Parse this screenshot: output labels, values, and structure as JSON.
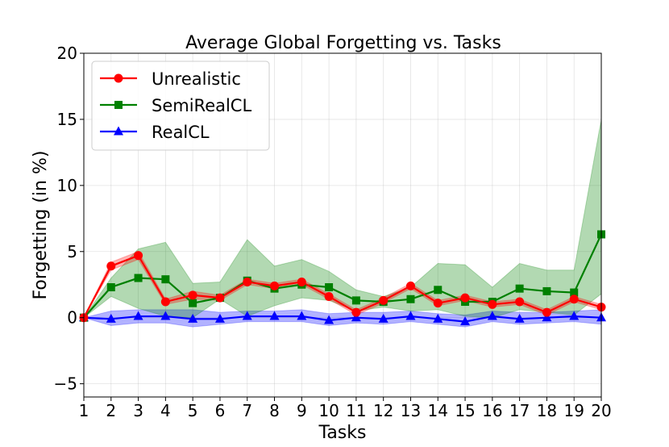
{
  "chart_data": {
    "type": "line",
    "title": "Average Global Forgetting vs. Tasks",
    "xlabel": "Tasks",
    "ylabel": "Forgetting (in %)",
    "x": [
      1,
      2,
      3,
      4,
      5,
      6,
      7,
      8,
      9,
      10,
      11,
      12,
      13,
      14,
      15,
      16,
      17,
      18,
      19,
      20
    ],
    "xlim": [
      1,
      20
    ],
    "ylim": [
      -6,
      20
    ],
    "yticks": [
      -5,
      0,
      5,
      10,
      15,
      20
    ],
    "grid": true,
    "legend": "top-left",
    "series": [
      {
        "name": "Unrealistic",
        "color": "#ff0000",
        "marker": "circle",
        "values": [
          0,
          3.9,
          4.7,
          1.2,
          1.7,
          1.5,
          2.7,
          2.4,
          2.7,
          1.6,
          0.4,
          1.3,
          2.4,
          1.1,
          1.5,
          1.0,
          1.2,
          0.4,
          1.4,
          0.8
        ],
        "lower": [
          0,
          3.6,
          4.4,
          1.0,
          1.4,
          1.3,
          2.5,
          2.2,
          2.5,
          1.4,
          0.2,
          1.1,
          2.2,
          0.9,
          1.3,
          0.8,
          1.0,
          0.2,
          1.2,
          0.6
        ],
        "upper": [
          0,
          4.2,
          5.0,
          1.4,
          2.0,
          1.7,
          2.9,
          2.6,
          2.9,
          1.8,
          0.6,
          1.5,
          2.6,
          1.3,
          1.7,
          1.2,
          1.4,
          0.6,
          1.6,
          1.0
        ]
      },
      {
        "name": "SemiRealCL",
        "color": "#008000",
        "marker": "square",
        "values": [
          0,
          2.3,
          3.0,
          2.9,
          1.1,
          1.5,
          2.8,
          2.2,
          2.5,
          2.3,
          1.3,
          1.2,
          1.4,
          2.1,
          1.2,
          1.2,
          2.2,
          2.0,
          1.9,
          6.3
        ],
        "lower": [
          0,
          1.6,
          0.7,
          0.1,
          0.0,
          1.4,
          0.1,
          0.9,
          1.5,
          1.3,
          0.5,
          0.8,
          0.5,
          0.6,
          0.1,
          0.0,
          0.6,
          0.4,
          0.2,
          1.8
        ],
        "upper": [
          0,
          3.0,
          5.2,
          5.7,
          2.6,
          2.7,
          5.9,
          3.9,
          4.4,
          3.5,
          2.1,
          1.6,
          2.3,
          4.1,
          4.0,
          2.3,
          4.1,
          3.6,
          3.6,
          15.0
        ]
      },
      {
        "name": "RealCL",
        "color": "#0000ff",
        "marker": "triangle",
        "values": [
          0,
          -0.1,
          0.1,
          0.1,
          -0.1,
          -0.1,
          0.1,
          0.1,
          0.1,
          -0.2,
          0.0,
          -0.1,
          0.1,
          -0.1,
          -0.3,
          0.1,
          -0.1,
          0.0,
          0.1,
          0.0
        ],
        "lower": [
          0,
          -0.6,
          -0.4,
          -0.4,
          -0.7,
          -0.5,
          -0.3,
          -0.3,
          -0.3,
          -0.6,
          -0.4,
          -0.5,
          -0.3,
          -0.5,
          -0.7,
          -0.3,
          -0.5,
          -0.4,
          -0.3,
          -0.5
        ],
        "upper": [
          0,
          0.5,
          0.6,
          0.6,
          0.6,
          0.4,
          0.5,
          0.5,
          0.6,
          0.3,
          0.4,
          0.4,
          0.5,
          0.3,
          0.2,
          0.5,
          0.4,
          0.4,
          0.5,
          0.6
        ]
      }
    ]
  }
}
